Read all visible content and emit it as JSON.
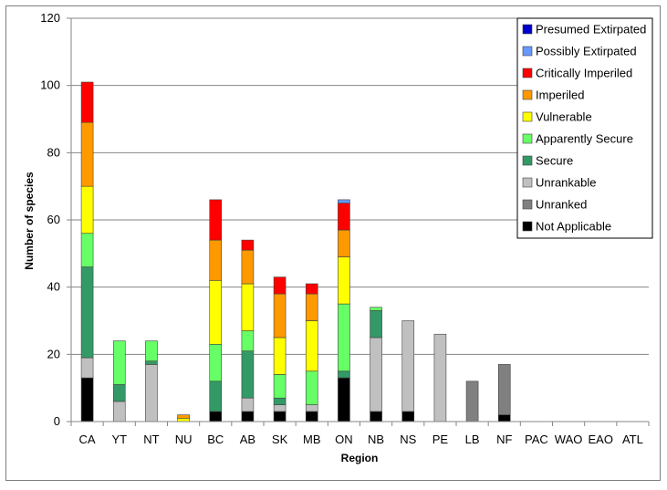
{
  "chart_data": {
    "type": "bar",
    "stacked": true,
    "title": "",
    "xlabel": "Region",
    "ylabel": "Number of species",
    "ylim": [
      0,
      120
    ],
    "yticks": [
      0,
      20,
      40,
      60,
      80,
      100,
      120
    ],
    "grid": true,
    "legend_position": "top-right",
    "categories": [
      "CA",
      "YT",
      "NT",
      "NU",
      "BC",
      "AB",
      "SK",
      "MB",
      "ON",
      "NB",
      "NS",
      "PE",
      "LB",
      "NF",
      "PAC",
      "WAO",
      "EAO",
      "ATL"
    ],
    "series": [
      {
        "name": "Not Applicable",
        "color": "#000000",
        "values": [
          13,
          0,
          0,
          0,
          3,
          3,
          3,
          3,
          13,
          3,
          3,
          0,
          0,
          2,
          0,
          0,
          0,
          0
        ]
      },
      {
        "name": "Unranked",
        "color": "#808080",
        "values": [
          0,
          0,
          0,
          0,
          0,
          0,
          0,
          0,
          0,
          0,
          0,
          0,
          12,
          15,
          0,
          0,
          0,
          0
        ]
      },
      {
        "name": "Unrankable",
        "color": "#c0c0c0",
        "values": [
          6,
          6,
          17,
          0,
          0,
          4,
          2,
          2,
          0,
          22,
          27,
          26,
          0,
          0,
          0,
          0,
          0,
          0
        ]
      },
      {
        "name": "Secure",
        "color": "#339966",
        "values": [
          27,
          5,
          1,
          0,
          9,
          14,
          2,
          0,
          2,
          8,
          0,
          0,
          0,
          0,
          0,
          0,
          0,
          0
        ]
      },
      {
        "name": "Apparently Secure",
        "color": "#66ff66",
        "values": [
          10,
          13,
          6,
          0,
          11,
          6,
          7,
          10,
          20,
          1,
          0,
          0,
          0,
          0,
          0,
          0,
          0,
          0
        ]
      },
      {
        "name": "Vulnerable",
        "color": "#ffff00",
        "values": [
          14,
          0,
          0,
          1,
          19,
          14,
          11,
          15,
          14,
          0,
          0,
          0,
          0,
          0,
          0,
          0,
          0,
          0
        ]
      },
      {
        "name": "Imperiled",
        "color": "#ff9900",
        "values": [
          19,
          0,
          0,
          1,
          12,
          10,
          13,
          8,
          8,
          0,
          0,
          0,
          0,
          0,
          0,
          0,
          0,
          0
        ]
      },
      {
        "name": "Critically Imperiled",
        "color": "#ff0000",
        "values": [
          12,
          0,
          0,
          0,
          12,
          3,
          5,
          3,
          8,
          0,
          0,
          0,
          0,
          0,
          0,
          0,
          0,
          0
        ]
      },
      {
        "name": "Possibly Extirpated",
        "color": "#6699ff",
        "values": [
          0,
          0,
          0,
          0,
          0,
          0,
          0,
          0,
          1,
          0,
          0,
          0,
          0,
          0,
          0,
          0,
          0,
          0
        ]
      },
      {
        "name": "Presumed Extirpated",
        "color": "#0000cc",
        "values": [
          0,
          0,
          0,
          0,
          0,
          0,
          0,
          0,
          0,
          0,
          0,
          0,
          0,
          0,
          0,
          0,
          0,
          0
        ]
      }
    ],
    "legend_order": [
      "Presumed Extirpated",
      "Possibly Extirpated",
      "Critically Imperiled",
      "Imperiled",
      "Vulnerable",
      "Apparently Secure",
      "Secure",
      "Unrankable",
      "Unranked",
      "Not Applicable"
    ]
  }
}
